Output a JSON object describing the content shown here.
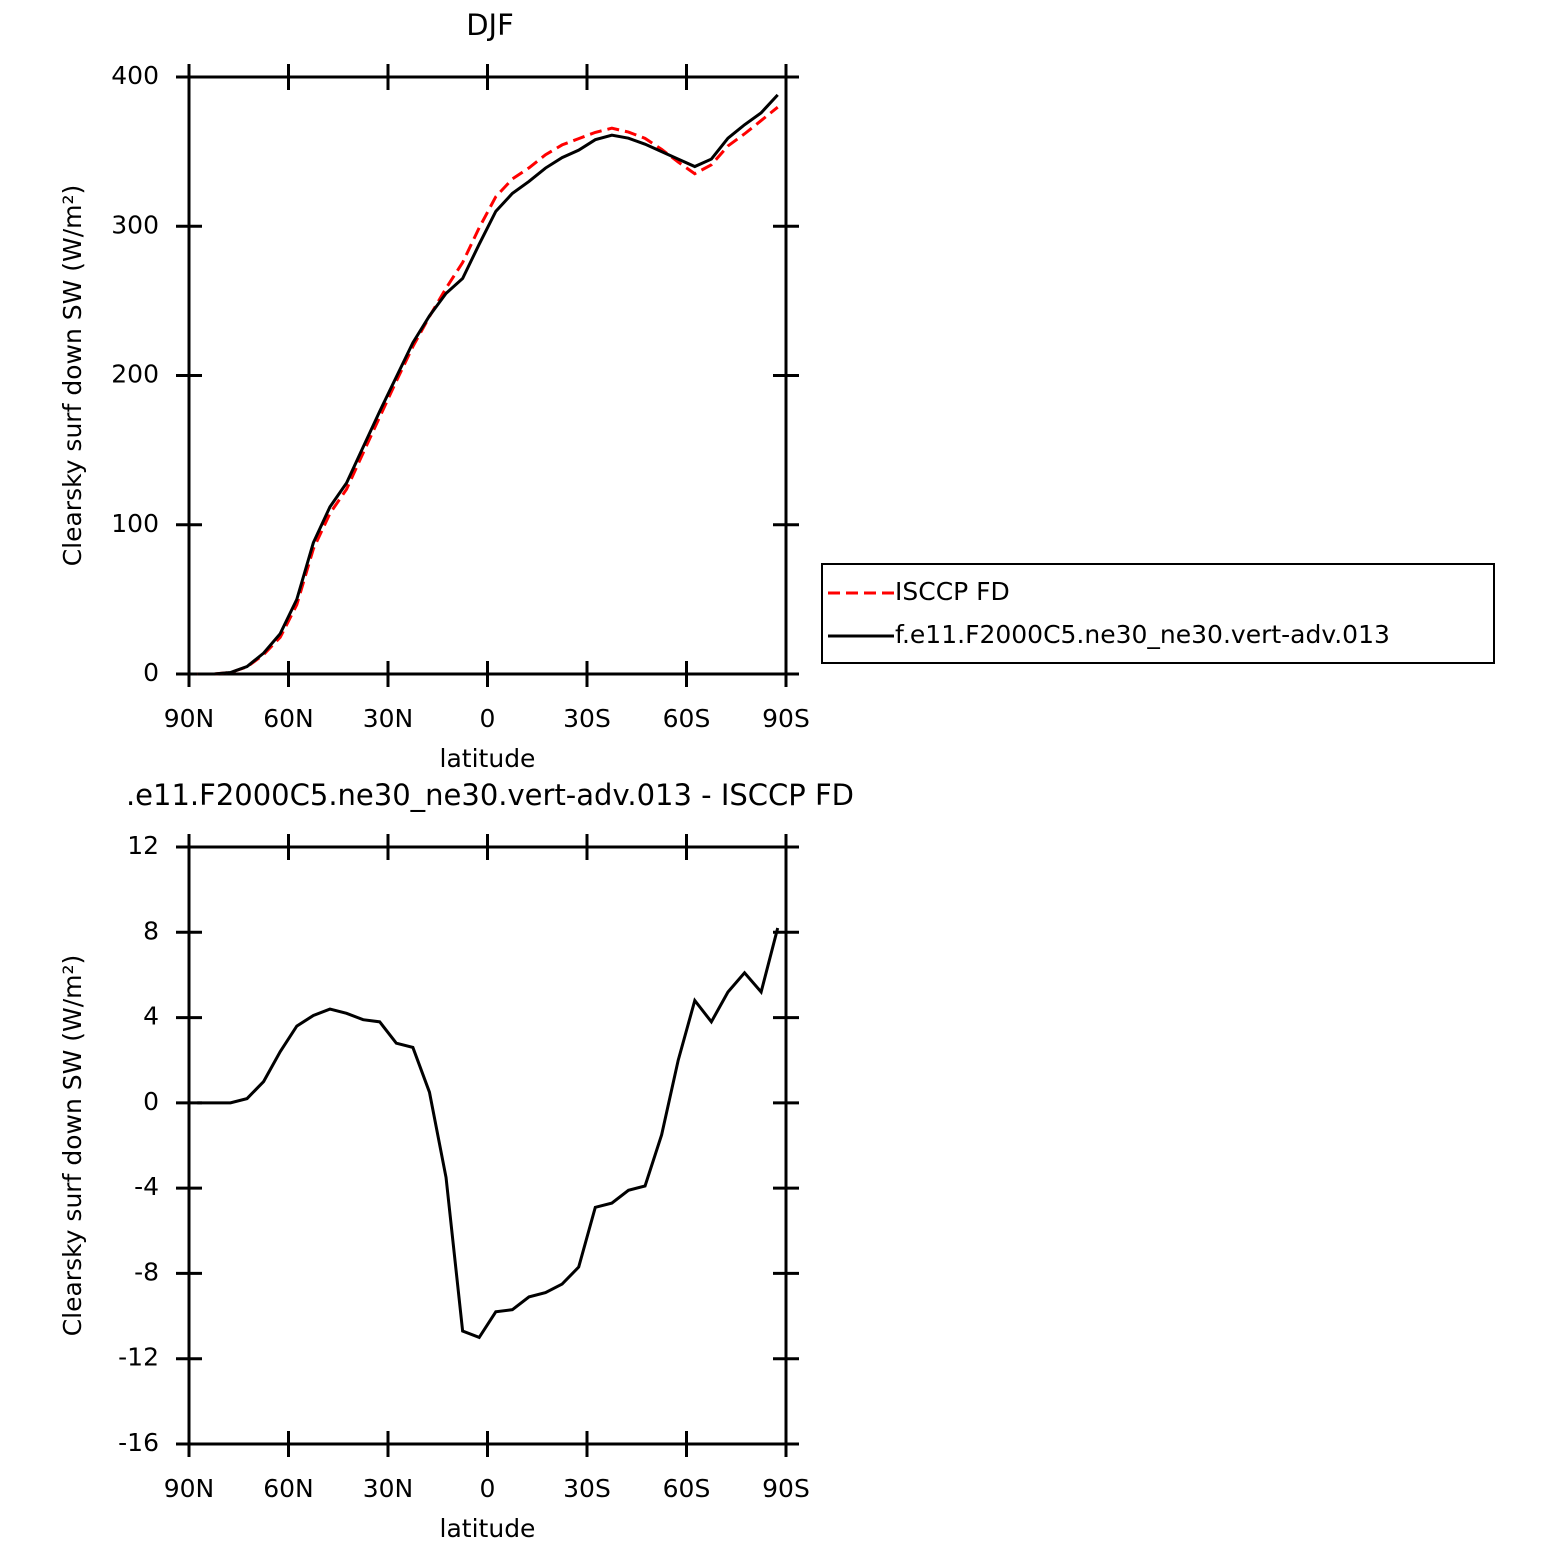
{
  "chart_data": [
    {
      "type": "line",
      "title": "DJF",
      "xlabel": "latitude",
      "ylabel": "Clearsky surf down SW (W/m²)",
      "x": [
        87.5,
        82.5,
        77.5,
        72.5,
        67.5,
        62.5,
        57.5,
        52.5,
        47.5,
        42.5,
        37.5,
        32.5,
        27.5,
        22.5,
        17.5,
        12.5,
        7.5,
        2.5,
        -2.5,
        -7.5,
        -12.5,
        -17.5,
        -22.5,
        -27.5,
        -32.5,
        -37.5,
        -42.5,
        -47.5,
        -52.5,
        -57.5,
        -62.5,
        -67.5,
        -72.5,
        -77.5,
        -82.5,
        -87.5
      ],
      "series": [
        {
          "name": "ISCCP FD",
          "color": "#ff0000",
          "style": "dashed",
          "values": [
            0,
            0,
            1,
            4.8,
            13,
            24.6,
            46.4,
            83.9,
            107.6,
            123.8,
            148.1,
            172.2,
            196.2,
            219.4,
            239.5,
            258.5,
            275.7,
            299,
            319.8,
            331.7,
            339.1,
            347.9,
            354.5,
            358.7,
            362.9,
            365.7,
            363.1,
            358.9,
            351.5,
            343,
            335.2,
            341.2,
            353.8,
            361.9,
            370.8,
            379.8
          ]
        },
        {
          "name": "f.e11.F2000C5.ne30_ne30.vert-adv.013",
          "color": "#000000",
          "style": "solid",
          "values": [
            0,
            0,
            1,
            5,
            14,
            27,
            50,
            88,
            112,
            128,
            152,
            176,
            199,
            222,
            240,
            255,
            265,
            288,
            310,
            322,
            330,
            339,
            346,
            351,
            358,
            361,
            359,
            355,
            350,
            345,
            340,
            345,
            359,
            368,
            376,
            388
          ]
        }
      ],
      "xlim": [
        90,
        -90
      ],
      "xticks": [
        {
          "value": 90,
          "label": "90N"
        },
        {
          "value": 60,
          "label": "60N"
        },
        {
          "value": 30,
          "label": "30N"
        },
        0,
        {
          "value": -30,
          "label": "30S"
        },
        {
          "value": -60,
          "label": "60S"
        },
        {
          "value": -90,
          "label": "90S"
        }
      ],
      "ylim": [
        0,
        400
      ],
      "yticks": [
        0,
        100,
        200,
        300,
        400
      ],
      "legend": "right"
    },
    {
      "type": "line",
      "title": ".e11.F2000C5.ne30_ne30.vert-adv.013 - ISCCP FD",
      "xlabel": "latitude",
      "ylabel": "Clearsky surf down SW (W/m²)",
      "x": [
        87.5,
        82.5,
        77.5,
        72.5,
        67.5,
        62.5,
        57.5,
        52.5,
        47.5,
        42.5,
        37.5,
        32.5,
        27.5,
        22.5,
        17.5,
        12.5,
        7.5,
        2.5,
        -2.5,
        -7.5,
        -12.5,
        -17.5,
        -22.5,
        -27.5,
        -32.5,
        -37.5,
        -42.5,
        -47.5,
        -52.5,
        -57.5,
        -62.5,
        -67.5,
        -72.5,
        -77.5,
        -82.5,
        -87.5
      ],
      "series": [
        {
          "color": "#000000",
          "style": "solid",
          "values": [
            0,
            0,
            0,
            0.2,
            1,
            2.4,
            3.6,
            4.1,
            4.4,
            4.2,
            3.9,
            3.8,
            2.8,
            2.6,
            0.5,
            -3.5,
            -10.7,
            -11,
            -9.8,
            -9.7,
            -9.1,
            -8.9,
            -8.5,
            -7.7,
            -4.9,
            -4.7,
            -4.1,
            -3.9,
            -1.5,
            2,
            4.8,
            3.8,
            5.2,
            6.1,
            5.2,
            8.2
          ]
        }
      ],
      "xlim": [
        90,
        -90
      ],
      "xticks": [
        {
          "value": 90,
          "label": "90N"
        },
        {
          "value": 60,
          "label": "60N"
        },
        {
          "value": 30,
          "label": "30N"
        },
        0,
        {
          "value": -30,
          "label": "30S"
        },
        {
          "value": -60,
          "label": "60S"
        },
        {
          "value": -90,
          "label": "90S"
        }
      ],
      "ylim": [
        -16,
        12
      ],
      "yticks": [
        -16,
        -12,
        -8,
        -4,
        0,
        4,
        8,
        12
      ]
    }
  ]
}
